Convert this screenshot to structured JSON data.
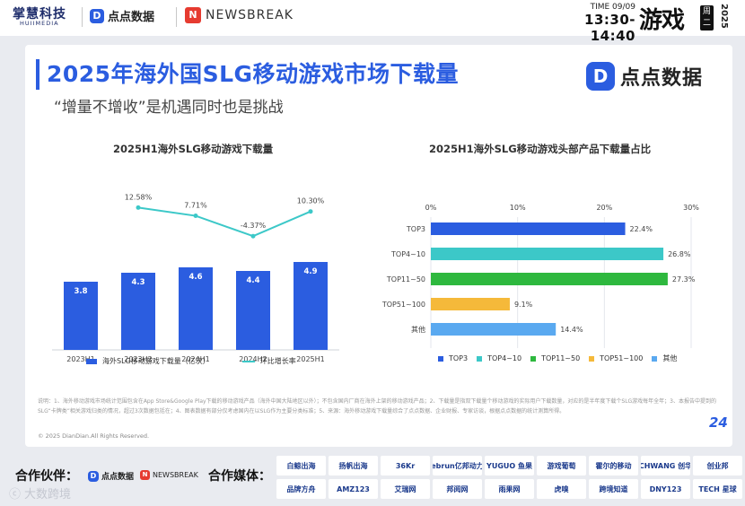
{
  "header": {
    "huimedia_cn": "掌慧科技",
    "huimedia_en": "HUIIMEDIA",
    "diandian_logo": "点点数据",
    "newsbreak_logo": "NEWSBREAK",
    "time_label": "TIME 09/09",
    "time_range": "13:30-14:40",
    "event_name": "游戏",
    "event_badge": "周二",
    "event_year": "2025"
  },
  "slide": {
    "title": "2025年海外国SLG移动游戏市场下载量",
    "subtitle": "“增量不增收”是机遇同时也是挑战",
    "brand": "点点数据",
    "page_number": "24",
    "footnote": "说明：1、海外移动游戏市场统计范围包含在App Store&Google Play下载的移动游戏产品（海外中国大陆地区以外）；不包含国内厂商在海外上架的移动游戏产品；2、下载量是指双下载量个移动游戏的实际用户下载数量，对应的是半年度下载个SLG游戏每年全年；3、本报告中提到的SLG“卡牌类”相关游戏归类的情况，超过3次数据包括在；4、图表数据有部分仅考虑国内在以SLG作为主要分类标准；5、来源：海外移动游戏下载量综合了点点数据、企业财报、专家访谈，根据点点数据的统计测算所得。",
    "copyright": "© 2025 DianDian.All Rights Reserved."
  },
  "chart_data": [
    {
      "type": "bar",
      "title": "2025H1海外SLG移动游戏下载量",
      "categories": [
        "2023H1",
        "2023H2",
        "2024H1",
        "2024H2",
        "2025H1"
      ],
      "series": [
        {
          "name": "海外SLG移动游戏下载量（亿次）",
          "kind": "bar",
          "values": [
            3.8,
            4.3,
            4.6,
            4.4,
            4.9
          ],
          "labels": [
            "3.8",
            "4.3",
            "4.6",
            "4.4",
            "4.9"
          ]
        },
        {
          "name": "环比增长率",
          "kind": "line",
          "values": [
            null,
            12.58,
            7.71,
            -4.37,
            10.3
          ],
          "labels": [
            "",
            "12.58%",
            "7.71%",
            "-4.37%",
            "10.30%"
          ]
        }
      ],
      "ylim": [
        0,
        6.5
      ],
      "colors": {
        "bar": "#2b5de0",
        "line": "#3cc8c8"
      }
    },
    {
      "type": "bar",
      "orientation": "horizontal",
      "title": "2025H1海外SLG移动游戏头部产品下载量占比",
      "categories": [
        "TOP3",
        "TOP4~10",
        "TOP11~50",
        "TOP51~100",
        "其他"
      ],
      "values": [
        22.4,
        26.8,
        27.3,
        9.1,
        14.4
      ],
      "value_labels": [
        "22.4%",
        "26.8%",
        "27.3%",
        "9.1%",
        "14.4%"
      ],
      "xlim": [
        0,
        30
      ],
      "xticks": [
        "0%",
        "10%",
        "20%",
        "30%"
      ],
      "colors": [
        "#2b5de0",
        "#3cc8c8",
        "#2eb83e",
        "#f5b93a",
        "#5aa9f0"
      ]
    }
  ],
  "partners": {
    "label": "合作伙伴：",
    "logos": [
      "点点数据",
      "NEWSBREAK"
    ]
  },
  "media": {
    "label": "合作媒体：",
    "items": [
      "白鲸出海",
      "扬帆出海",
      "36Kr",
      "ebrun亿邦动力",
      "YUGUO 鱼果",
      "游戏葡萄",
      "霍尔的移动",
      "CHWANG 创华",
      "创业邦",
      "品牌方舟",
      "AMZ123",
      "艾瑞网",
      "邦阅网",
      "雨果网",
      "虎嗅",
      "跨境知道",
      "DNY123",
      "TECH 星球"
    ]
  },
  "watermark": "大数跨境"
}
